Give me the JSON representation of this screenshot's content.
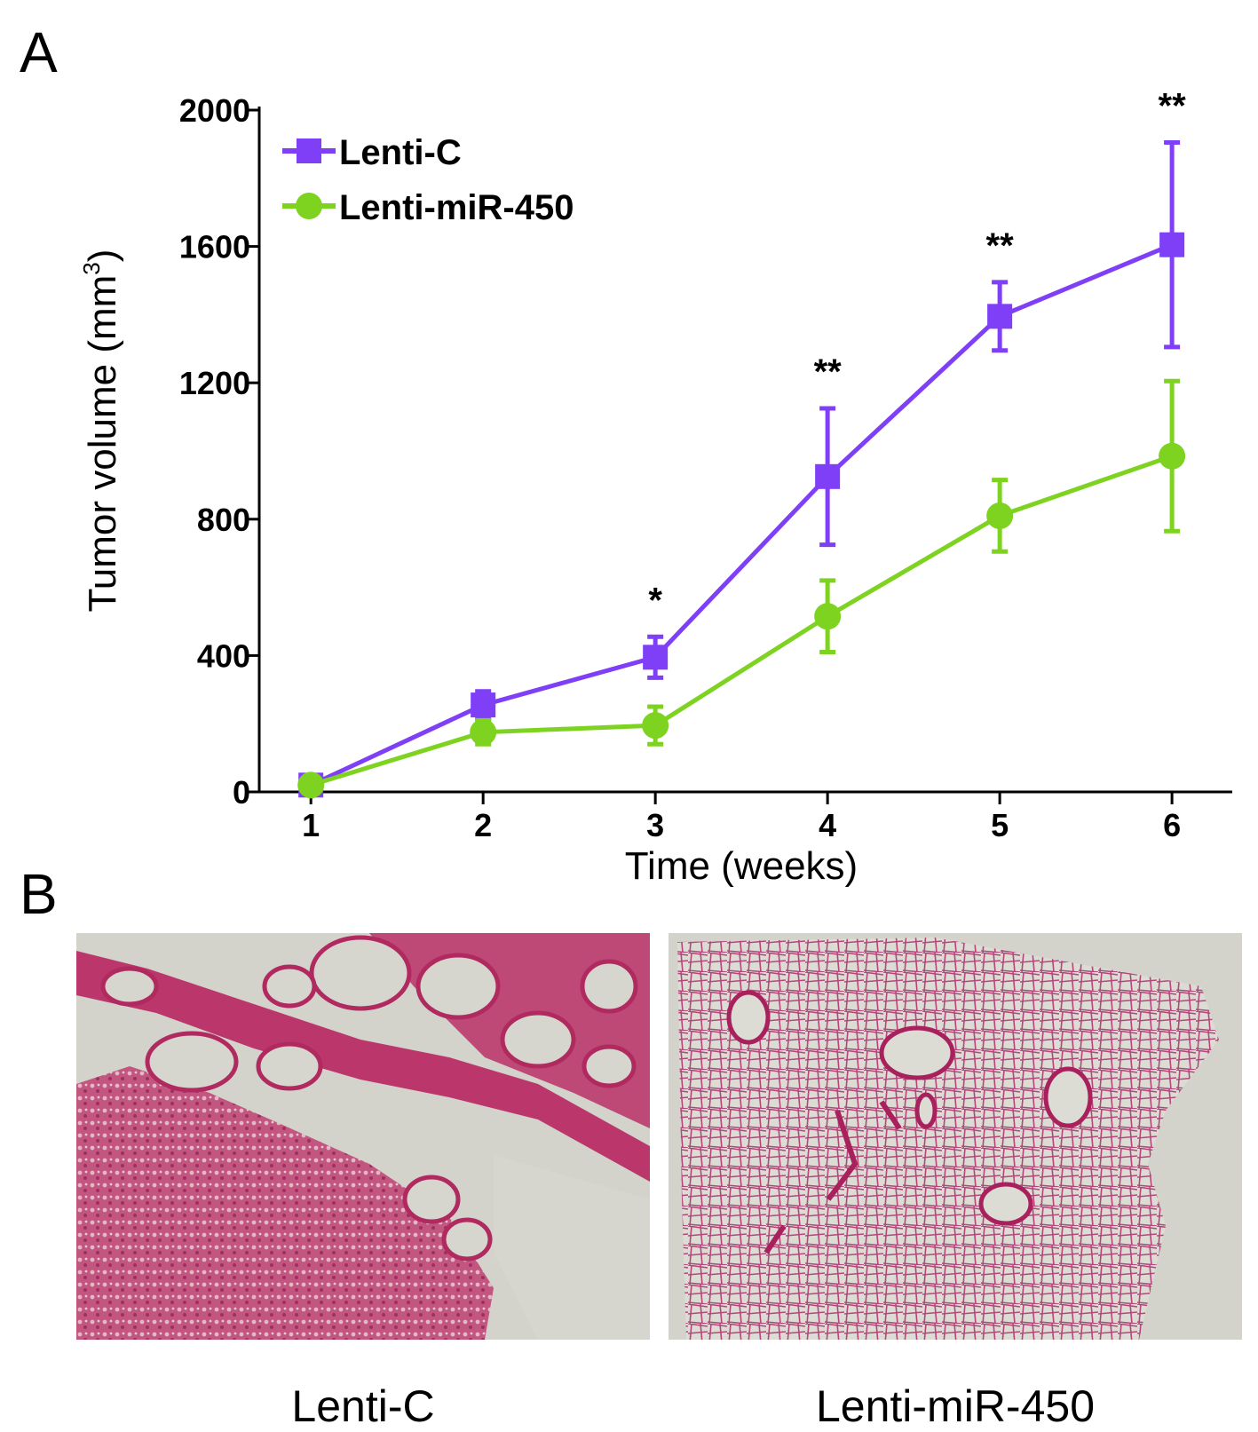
{
  "panels": {
    "a": "A",
    "b": "B"
  },
  "chart_data": {
    "type": "line",
    "x": [
      1,
      2,
      3,
      4,
      5,
      6
    ],
    "xticks": [
      "1",
      "2",
      "3",
      "4",
      "5",
      "6"
    ],
    "yticks": [
      "0",
      "400",
      "800",
      "1200",
      "1600",
      "2000"
    ],
    "ylim": [
      0,
      2000
    ],
    "xlim": [
      0.7,
      6.35
    ],
    "xlabel": "Time (weeks)",
    "ylabel": "Tumor volume (mm",
    "ylabel_sup": "3",
    "ylabel_close": ")",
    "legend_position": "top-left",
    "series": [
      {
        "name": "Lenti-C",
        "color": "#7f3ff7",
        "marker": "square",
        "values": [
          20,
          255,
          395,
          925,
          1395,
          1605
        ],
        "errors": [
          15,
          40,
          60,
          200,
          100,
          300
        ]
      },
      {
        "name": "Lenti-miR-450",
        "color": "#7ed321",
        "marker": "circle",
        "values": [
          20,
          175,
          195,
          515,
          810,
          985
        ],
        "errors": [
          15,
          35,
          55,
          105,
          105,
          220
        ]
      }
    ],
    "significance": [
      {
        "x": 3,
        "label": "*"
      },
      {
        "x": 4,
        "label": "**"
      },
      {
        "x": 5,
        "label": "**"
      },
      {
        "x": 6,
        "label": "**"
      }
    ]
  },
  "images": [
    {
      "caption": "Lenti-C",
      "description": "lung tissue histology section"
    },
    {
      "caption": "Lenti-miR-450",
      "description": "lung tissue histology section"
    }
  ]
}
